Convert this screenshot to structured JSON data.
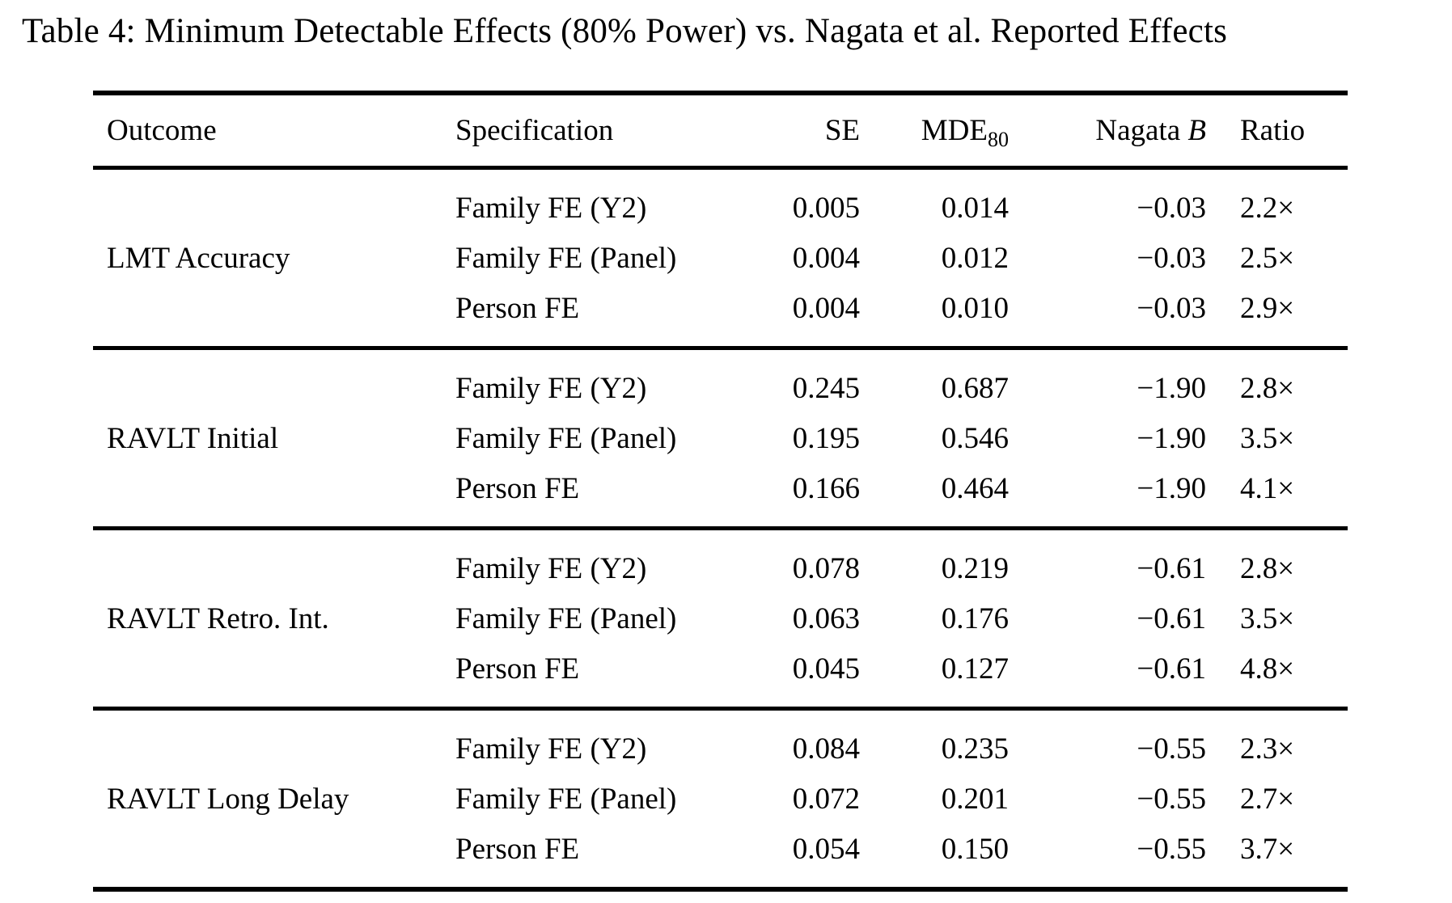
{
  "title": "Table 4: Minimum Detectable Effects (80% Power) vs. Nagata et al. Reported Effects",
  "table": {
    "headers": {
      "outcome": "Outcome",
      "specification": "Specification",
      "se": "SE",
      "mde_main": "MDE",
      "mde_sub": "80",
      "nagata_main": "Nagata",
      "nagata_var": "B",
      "ratio": "Ratio"
    },
    "groups": [
      {
        "outcome": "LMT Accuracy",
        "rows": [
          {
            "spec": "Family FE (Y2)",
            "se": "0.005",
            "mde": "0.014",
            "nagata": "−0.03",
            "ratio": "2.2×"
          },
          {
            "spec": "Family FE (Panel)",
            "se": "0.004",
            "mde": "0.012",
            "nagata": "−0.03",
            "ratio": "2.5×"
          },
          {
            "spec": "Person FE",
            "se": "0.004",
            "mde": "0.010",
            "nagata": "−0.03",
            "ratio": "2.9×"
          }
        ]
      },
      {
        "outcome": "RAVLT Initial",
        "rows": [
          {
            "spec": "Family FE (Y2)",
            "se": "0.245",
            "mde": "0.687",
            "nagata": "−1.90",
            "ratio": "2.8×"
          },
          {
            "spec": "Family FE (Panel)",
            "se": "0.195",
            "mde": "0.546",
            "nagata": "−1.90",
            "ratio": "3.5×"
          },
          {
            "spec": "Person FE",
            "se": "0.166",
            "mde": "0.464",
            "nagata": "−1.90",
            "ratio": "4.1×"
          }
        ]
      },
      {
        "outcome": "RAVLT Retro. Int.",
        "rows": [
          {
            "spec": "Family FE (Y2)",
            "se": "0.078",
            "mde": "0.219",
            "nagata": "−0.61",
            "ratio": "2.8×"
          },
          {
            "spec": "Family FE (Panel)",
            "se": "0.063",
            "mde": "0.176",
            "nagata": "−0.61",
            "ratio": "3.5×"
          },
          {
            "spec": "Person FE",
            "se": "0.045",
            "mde": "0.127",
            "nagata": "−0.61",
            "ratio": "4.8×"
          }
        ]
      },
      {
        "outcome": "RAVLT Long Delay",
        "rows": [
          {
            "spec": "Family FE (Y2)",
            "se": "0.084",
            "mde": "0.235",
            "nagata": "−0.55",
            "ratio": "2.3×"
          },
          {
            "spec": "Family FE (Panel)",
            "se": "0.072",
            "mde": "0.201",
            "nagata": "−0.55",
            "ratio": "2.7×"
          },
          {
            "spec": "Person FE",
            "se": "0.054",
            "mde": "0.150",
            "nagata": "−0.55",
            "ratio": "3.7×"
          }
        ]
      }
    ]
  }
}
